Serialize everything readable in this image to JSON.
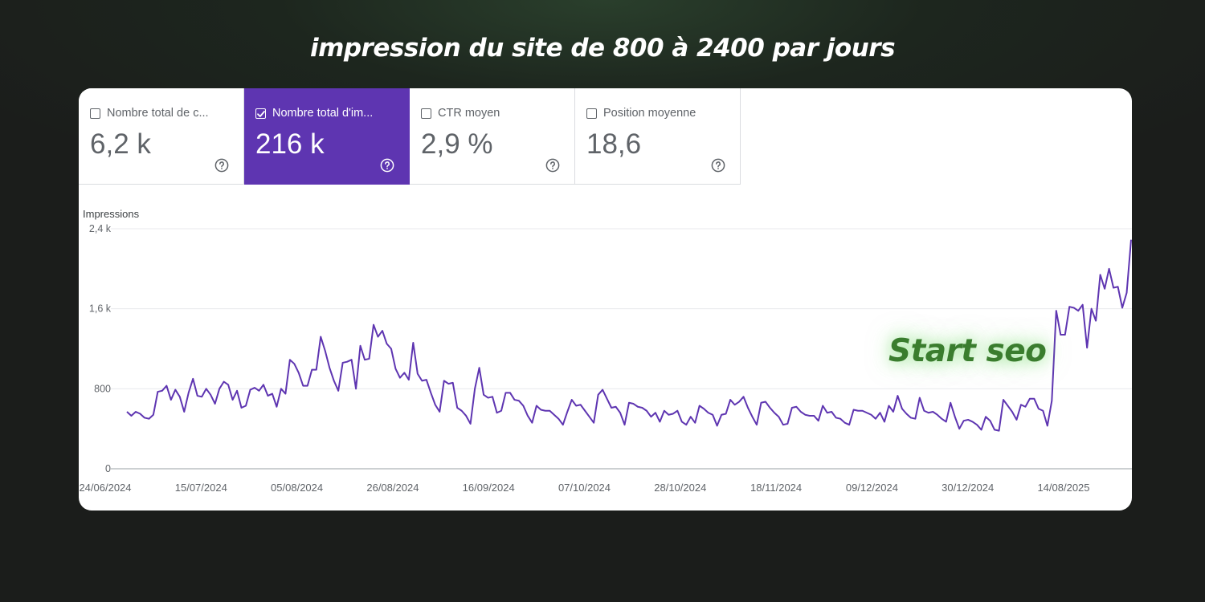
{
  "headline": "impression du site de 800 à 2400 par jours",
  "tabs": [
    {
      "label": "Nombre total de clics",
      "label_display": "Nombre total de c...",
      "value": "6,2 k",
      "checked": false
    },
    {
      "label": "Nombre total d'impressions",
      "label_display": "Nombre total d'im...",
      "value": "216 k",
      "checked": true
    },
    {
      "label": "CTR moyen",
      "label_display": "CTR moyen",
      "value": "2,9 %",
      "checked": false
    },
    {
      "label": "Position moyenne",
      "label_display": "Position moyenne",
      "value": "18,6",
      "checked": false
    }
  ],
  "annotation": "Start seo",
  "colors": {
    "accent": "#5e35b1",
    "line": "#5e35b1",
    "annotation": "#3a7d2e"
  },
  "chart_data": {
    "type": "line",
    "ylabel": "Impressions",
    "ylim": [
      0,
      2400
    ],
    "yticks": [
      0,
      800,
      1600,
      2400
    ],
    "ytick_labels": [
      "0",
      "800",
      "1,6 k",
      "2,4 k"
    ],
    "xtick_labels": [
      "24/06/2024",
      "15/07/2024",
      "05/08/2024",
      "26/08/2024",
      "16/09/2024",
      "07/10/2024",
      "28/10/2024",
      "18/11/2024",
      "09/12/2024",
      "30/12/2024",
      "14/08/2025"
    ],
    "grid": true,
    "series": [
      {
        "name": "Impressions",
        "values": [
          570,
          530,
          570,
          550,
          510,
          500,
          540,
          770,
          780,
          830,
          690,
          790,
          720,
          570,
          760,
          900,
          730,
          720,
          800,
          740,
          650,
          800,
          870,
          840,
          690,
          780,
          610,
          630,
          790,
          810,
          780,
          840,
          730,
          750,
          620,
          800,
          750,
          1090,
          1050,
          960,
          830,
          830,
          990,
          990,
          1320,
          1180,
          1010,
          880,
          780,
          1060,
          1070,
          1090,
          800,
          1230,
          1090,
          1100,
          1440,
          1320,
          1380,
          1250,
          1200,
          1000,
          910,
          960,
          890,
          1260,
          950,
          880,
          890,
          760,
          640,
          570,
          880,
          850,
          860,
          610,
          580,
          530,
          450,
          800,
          1010,
          740,
          710,
          720,
          560,
          580,
          760,
          760,
          690,
          680,
          630,
          530,
          460,
          630,
          590,
          580,
          580,
          540,
          500,
          440,
          570,
          690,
          630,
          640,
          580,
          520,
          460,
          740,
          790,
          700,
          610,
          620,
          560,
          440,
          660,
          650,
          620,
          610,
          580,
          520,
          560,
          470,
          580,
          540,
          550,
          580,
          470,
          440,
          520,
          460,
          630,
          600,
          560,
          540,
          430,
          540,
          550,
          690,
          640,
          670,
          720,
          610,
          520,
          440,
          660,
          670,
          610,
          560,
          520,
          440,
          450,
          610,
          620,
          570,
          540,
          530,
          530,
          480,
          630,
          560,
          570,
          510,
          500,
          460,
          440,
          590,
          580,
          580,
          560,
          540,
          500,
          560,
          470,
          630,
          570,
          730,
          600,
          550,
          510,
          500,
          710,
          580,
          560,
          570,
          540,
          500,
          470,
          660,
          520,
          400,
          480,
          490,
          470,
          440,
          390,
          520,
          480,
          390,
          380,
          690,
          630,
          570,
          490,
          640,
          620,
          700,
          700,
          600,
          580,
          430,
          680,
          1580,
          1340,
          1340,
          1620,
          1610,
          1580,
          1640,
          1210,
          1600,
          1480,
          1940,
          1800,
          2000,
          1810,
          1820,
          1610,
          1760,
          2290
        ]
      }
    ]
  }
}
